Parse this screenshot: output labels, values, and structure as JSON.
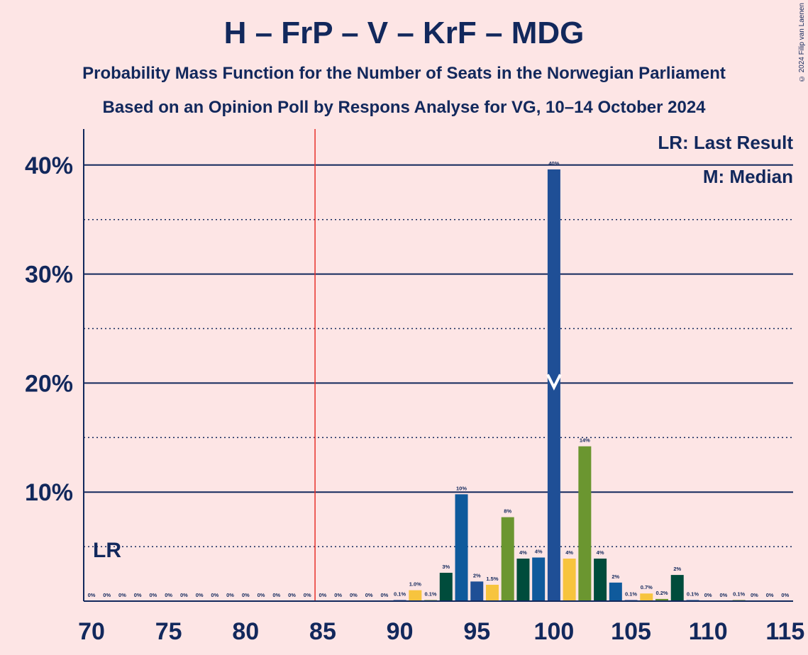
{
  "title": "H – FrP – V – KrF – MDG",
  "subtitle": "Probability Mass Function for the Number of Seats in the Norwegian Parliament",
  "subtitle2": "Based on an Opinion Poll by Respons Analyse for VG, 10–14 October 2024",
  "copyright": "© 2024 Filip van Laenen",
  "legend": {
    "lr": "LR: Last Result",
    "m": "M: Median"
  },
  "colors": {
    "background": "#FDE5E5",
    "text": "#12285C",
    "last_result_line": "#E8302A",
    "bar_palette": [
      "#0F5A9C",
      "#1F4F96",
      "#F7C43E",
      "#6B9630",
      "#004C3C"
    ]
  },
  "chart_data": {
    "type": "bar",
    "xlim": [
      70,
      115
    ],
    "ylim": [
      0,
      43
    ],
    "x_ticks": [
      70,
      75,
      80,
      85,
      90,
      95,
      100,
      105,
      110,
      115
    ],
    "y_ticks": [
      {
        "value": 10,
        "label": "10%"
      },
      {
        "value": 20,
        "label": "20%"
      },
      {
        "value": 30,
        "label": "30%"
      },
      {
        "value": 40,
        "label": "40%"
      }
    ],
    "y_dotted": [
      5,
      15,
      25,
      35
    ],
    "last_result": {
      "seats": 85,
      "label": "LR"
    },
    "median": {
      "seats": 100,
      "label": "M"
    },
    "bars": [
      {
        "seats": 70,
        "value": 0,
        "label": "0%"
      },
      {
        "seats": 71,
        "value": 0,
        "label": "0%"
      },
      {
        "seats": 72,
        "value": 0,
        "label": "0%"
      },
      {
        "seats": 73,
        "value": 0,
        "label": "0%"
      },
      {
        "seats": 74,
        "value": 0,
        "label": "0%"
      },
      {
        "seats": 75,
        "value": 0,
        "label": "0%"
      },
      {
        "seats": 76,
        "value": 0,
        "label": "0%"
      },
      {
        "seats": 77,
        "value": 0,
        "label": "0%"
      },
      {
        "seats": 78,
        "value": 0,
        "label": "0%"
      },
      {
        "seats": 79,
        "value": 0,
        "label": "0%"
      },
      {
        "seats": 80,
        "value": 0,
        "label": "0%"
      },
      {
        "seats": 81,
        "value": 0,
        "label": "0%"
      },
      {
        "seats": 82,
        "value": 0,
        "label": "0%"
      },
      {
        "seats": 83,
        "value": 0,
        "label": "0%"
      },
      {
        "seats": 84,
        "value": 0,
        "label": "0%"
      },
      {
        "seats": 85,
        "value": 0,
        "label": "0%"
      },
      {
        "seats": 86,
        "value": 0,
        "label": "0%"
      },
      {
        "seats": 87,
        "value": 0,
        "label": "0%"
      },
      {
        "seats": 88,
        "value": 0,
        "label": "0%"
      },
      {
        "seats": 89,
        "value": 0,
        "label": "0%"
      },
      {
        "seats": 90,
        "value": 0.1,
        "label": "0.1%"
      },
      {
        "seats": 91,
        "value": 1.0,
        "label": "1.0%"
      },
      {
        "seats": 92,
        "value": 0.1,
        "label": "0.1%"
      },
      {
        "seats": 93,
        "value": 2.6,
        "label": "3%"
      },
      {
        "seats": 94,
        "value": 9.8,
        "label": "10%"
      },
      {
        "seats": 95,
        "value": 1.8,
        "label": "2%"
      },
      {
        "seats": 96,
        "value": 1.5,
        "label": "1.5%"
      },
      {
        "seats": 97,
        "value": 7.7,
        "label": "8%"
      },
      {
        "seats": 98,
        "value": 3.9,
        "label": "4%"
      },
      {
        "seats": 99,
        "value": 4.0,
        "label": "4%"
      },
      {
        "seats": 100,
        "value": 39.6,
        "label": "40%"
      },
      {
        "seats": 101,
        "value": 3.9,
        "label": "4%"
      },
      {
        "seats": 102,
        "value": 14.2,
        "label": "14%"
      },
      {
        "seats": 103,
        "value": 3.9,
        "label": "4%"
      },
      {
        "seats": 104,
        "value": 1.7,
        "label": "2%"
      },
      {
        "seats": 105,
        "value": 0.1,
        "label": "0.1%"
      },
      {
        "seats": 106,
        "value": 0.7,
        "label": "0.7%"
      },
      {
        "seats": 107,
        "value": 0.2,
        "label": "0.2%"
      },
      {
        "seats": 108,
        "value": 2.4,
        "label": "2%"
      },
      {
        "seats": 109,
        "value": 0.1,
        "label": "0.1%"
      },
      {
        "seats": 110,
        "value": 0,
        "label": "0%"
      },
      {
        "seats": 111,
        "value": 0,
        "label": "0%"
      },
      {
        "seats": 112,
        "value": 0.1,
        "label": "0.1%"
      },
      {
        "seats": 113,
        "value": 0,
        "label": "0%"
      },
      {
        "seats": 114,
        "value": 0,
        "label": "0%"
      },
      {
        "seats": 115,
        "value": 0,
        "label": "0%"
      }
    ]
  }
}
